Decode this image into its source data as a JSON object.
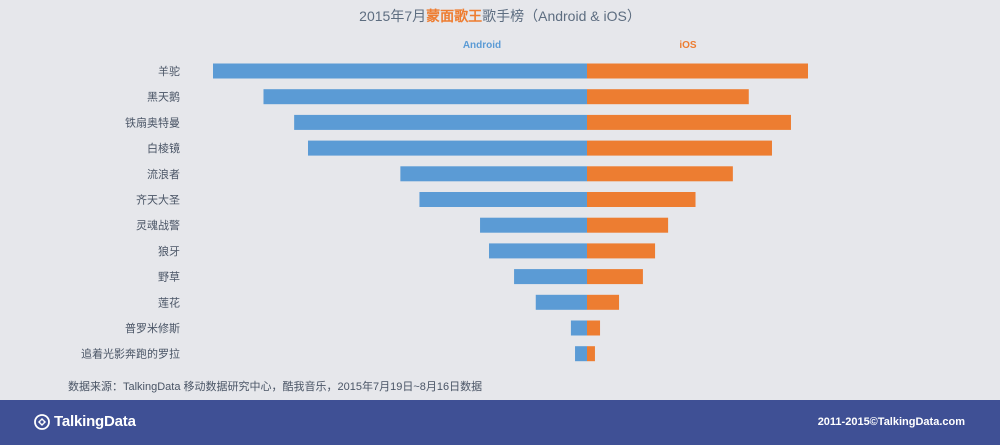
{
  "title": {
    "prefix": "2015年7月",
    "highlight": "蒙面歌王",
    "suffix": "歌手榜（Android & iOS）"
  },
  "chart_data": {
    "type": "bar",
    "orientation": "horizontal-diverging",
    "categories": [
      "羊驼",
      "黑天鹅",
      "铁扇奥特曼",
      "白棱镜",
      "流浪者",
      "齐天大圣",
      "灵魂战警",
      "狼牙",
      "野草",
      "莲花",
      "普罗米修斯",
      "追着光影奔跑的罗拉"
    ],
    "series": [
      {
        "name": "Android",
        "color": "#5b9bd5",
        "values": [
          100,
          86.5,
          78.3,
          74.6,
          49.9,
          44.8,
          28.6,
          26.2,
          19.5,
          13.7,
          4.3,
          3.2
        ]
      },
      {
        "name": "iOS",
        "color": "#ed7d31",
        "values": [
          100,
          73.2,
          92.3,
          83.7,
          66.0,
          49.1,
          36.7,
          30.8,
          25.3,
          14.5,
          5.9,
          3.6
        ]
      }
    ],
    "legend": "top-center",
    "grid": false
  },
  "source_text": "数据来源：TalkingData 移动数据研究中心，酷我音乐，2015年7月19日~8月16日数据",
  "footer": {
    "brand": "TalkingData",
    "copyright": "2011-2015©TalkingData.com"
  },
  "colors": {
    "background": "#e6e7eb",
    "footer": "#3f5095",
    "highlight": "#ee7d31"
  }
}
